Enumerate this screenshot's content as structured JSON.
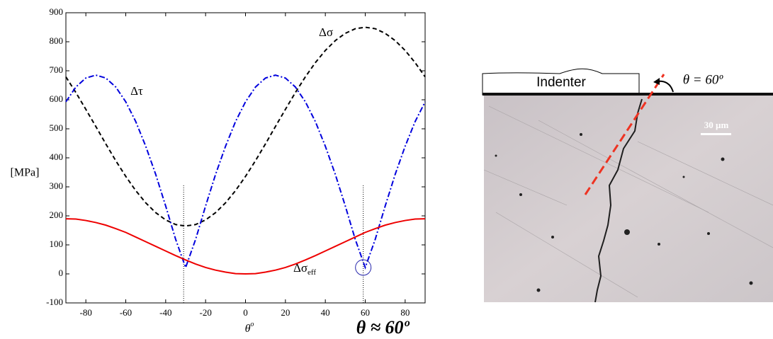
{
  "chart_data": {
    "type": "line",
    "ylabel": "[MPa]",
    "xlabel": "θ",
    "xlabel_sup": "o",
    "note": "θ ≈ 60º",
    "x": [
      -90,
      -85,
      -80,
      -75,
      -70,
      -65,
      -60,
      -55,
      -50,
      -45,
      -40,
      -35,
      -30,
      -25,
      -20,
      -15,
      -10,
      -5,
      0,
      5,
      10,
      15,
      20,
      25,
      30,
      35,
      40,
      45,
      50,
      55,
      60,
      65,
      70,
      75,
      80,
      85,
      90
    ],
    "series": [
      {
        "name": "Δσ",
        "color": "#000000",
        "style": "dashed",
        "values": [
          679,
          625,
          567,
          508,
          448,
          390,
          336,
          287,
          245,
          211,
          186,
          170,
          165,
          170,
          186,
          211,
          245,
          287,
          336,
          390,
          448,
          508,
          567,
          625,
          679,
          728,
          770,
          804,
          829,
          845,
          850,
          845,
          829,
          804,
          770,
          728,
          679
        ]
      },
      {
        "name": "Δτ",
        "color": "#0000dd",
        "style": "dashdot",
        "values": [
          593,
          644,
          675,
          685,
          675,
          644,
          593,
          525,
          440,
          343,
          234,
          119,
          22,
          119,
          234,
          343,
          440,
          525,
          593,
          644,
          675,
          685,
          675,
          644,
          593,
          525,
          440,
          343,
          234,
          119,
          22,
          119,
          234,
          343,
          440,
          525,
          593
        ]
      },
      {
        "name": "Δσ",
        "name_sub": "eff",
        "color": "#ee0000",
        "style": "solid",
        "values": [
          190,
          189,
          184,
          177,
          168,
          156,
          143,
          127,
          111,
          95,
          79,
          63,
          48,
          34,
          22,
          13,
          6,
          1,
          0,
          1,
          6,
          13,
          22,
          34,
          48,
          63,
          79,
          95,
          111,
          127,
          143,
          156,
          168,
          177,
          184,
          189,
          190
        ]
      }
    ],
    "reference_lines": [
      {
        "x": -31,
        "y": [
          -100,
          305
        ]
      },
      {
        "x": 59,
        "y": [
          -100,
          305
        ]
      }
    ],
    "highlight": {
      "x": 59,
      "y": 22
    },
    "xlim": [
      -90,
      90
    ],
    "xticks": [
      -80,
      -60,
      -40,
      -20,
      0,
      20,
      40,
      60,
      80
    ],
    "ylim": [
      -100,
      900
    ],
    "yticks": [
      -100,
      0,
      100,
      200,
      300,
      400,
      500,
      600,
      700,
      800,
      900
    ]
  },
  "micrograph": {
    "indenter": "Indenter",
    "angle": "θ = 60º",
    "scale": "30 µm"
  }
}
